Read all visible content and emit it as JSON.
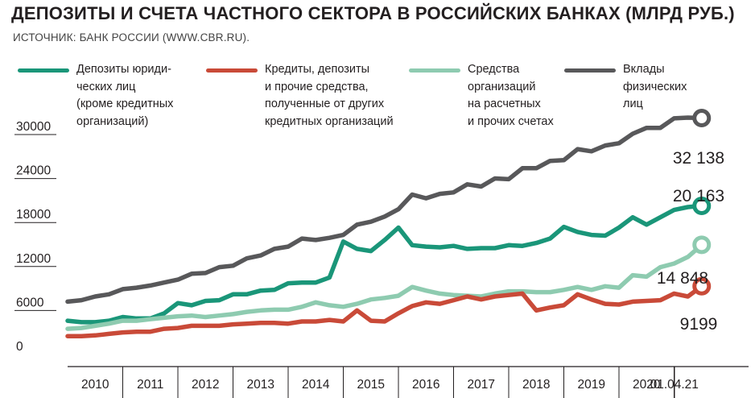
{
  "header": {
    "title": "ДЕПОЗИТЫ И СЧЕТА ЧАСТНОГО СЕКТОРА В РОССИЙСКИХ БАНКАХ (МЛРД РУБ.)",
    "source": "ИСТОЧНИК: БАНК РОССИИ (WWW.CBR.RU)."
  },
  "legend": [
    {
      "label": "Депозиты юриди-\nческих лиц\n(кроме кредитных\nорганизаций)",
      "color": "#1a9679"
    },
    {
      "label": "Кредиты, депозиты\nи прочие средства,\nполученные от других\nкредитных организаций",
      "color": "#c94a38"
    },
    {
      "label": "Средства\nорганизаций\nна расчетных\nи прочих счетах",
      "color": "#8ecbb0"
    },
    {
      "label": "Вклады\nфизических\nлиц",
      "color": "#58585a"
    }
  ],
  "chart_data": {
    "type": "line",
    "categories": [
      "2010",
      "2011",
      "2012",
      "2013",
      "2014",
      "2015",
      "2016",
      "2017",
      "2018",
      "2019",
      "2020",
      "01.04.21"
    ],
    "ylim": [
      0,
      33000
    ],
    "yticks": [
      0,
      6000,
      12000,
      18000,
      24000,
      30000
    ],
    "grid": false,
    "end_labels": [
      "32 138",
      "20 163",
      "14 848",
      "9199"
    ],
    "series": [
      {
        "key": "households",
        "color": "#58585a",
        "end_label": "32 138",
        "points": [
          [
            0.0,
            7100
          ],
          [
            0.25,
            7300
          ],
          [
            0.5,
            7800
          ],
          [
            0.75,
            8100
          ],
          [
            1.0,
            8800
          ],
          [
            1.25,
            9000
          ],
          [
            1.5,
            9300
          ],
          [
            1.75,
            9700
          ],
          [
            2.0,
            10100
          ],
          [
            2.25,
            10900
          ],
          [
            2.5,
            11000
          ],
          [
            2.75,
            11800
          ],
          [
            3.0,
            12000
          ],
          [
            3.25,
            13000
          ],
          [
            3.5,
            13400
          ],
          [
            3.75,
            14300
          ],
          [
            4.0,
            14600
          ],
          [
            4.25,
            15700
          ],
          [
            4.5,
            15500
          ],
          [
            4.75,
            15800
          ],
          [
            5.0,
            16200
          ],
          [
            5.25,
            17600
          ],
          [
            5.5,
            18000
          ],
          [
            5.75,
            18700
          ],
          [
            6.0,
            19700
          ],
          [
            6.25,
            21700
          ],
          [
            6.5,
            21200
          ],
          [
            6.75,
            21800
          ],
          [
            7.0,
            22000
          ],
          [
            7.25,
            23100
          ],
          [
            7.5,
            22800
          ],
          [
            7.75,
            23900
          ],
          [
            8.0,
            23800
          ],
          [
            8.25,
            25300
          ],
          [
            8.5,
            25300
          ],
          [
            8.75,
            26300
          ],
          [
            9.0,
            26400
          ],
          [
            9.25,
            27900
          ],
          [
            9.5,
            27600
          ],
          [
            9.75,
            28400
          ],
          [
            10.0,
            28700
          ],
          [
            10.25,
            30000
          ],
          [
            10.5,
            30800
          ],
          [
            10.75,
            30800
          ],
          [
            11.0,
            32100
          ],
          [
            11.25,
            32200
          ],
          [
            11.5,
            32138
          ]
        ]
      },
      {
        "key": "legal_entities",
        "color": "#1a9679",
        "end_label": "20 163",
        "points": [
          [
            0.0,
            4500
          ],
          [
            0.25,
            4300
          ],
          [
            0.5,
            4300
          ],
          [
            0.75,
            4500
          ],
          [
            1.0,
            5000
          ],
          [
            1.25,
            4800
          ],
          [
            1.5,
            4800
          ],
          [
            1.75,
            5500
          ],
          [
            2.0,
            6900
          ],
          [
            2.25,
            6600
          ],
          [
            2.5,
            7200
          ],
          [
            2.75,
            7300
          ],
          [
            3.0,
            8100
          ],
          [
            3.25,
            8100
          ],
          [
            3.5,
            8600
          ],
          [
            3.75,
            8700
          ],
          [
            4.0,
            9600
          ],
          [
            4.25,
            9700
          ],
          [
            4.5,
            9700
          ],
          [
            4.75,
            10400
          ],
          [
            5.0,
            15300
          ],
          [
            5.25,
            14300
          ],
          [
            5.5,
            14000
          ],
          [
            5.75,
            15500
          ],
          [
            6.0,
            17200
          ],
          [
            6.25,
            14800
          ],
          [
            6.5,
            14600
          ],
          [
            6.75,
            14500
          ],
          [
            7.0,
            14700
          ],
          [
            7.25,
            14300
          ],
          [
            7.5,
            14400
          ],
          [
            7.75,
            14400
          ],
          [
            8.0,
            14800
          ],
          [
            8.25,
            14700
          ],
          [
            8.5,
            15100
          ],
          [
            8.75,
            15700
          ],
          [
            9.0,
            17300
          ],
          [
            9.25,
            16600
          ],
          [
            9.5,
            16200
          ],
          [
            9.75,
            16100
          ],
          [
            10.0,
            17200
          ],
          [
            10.25,
            18600
          ],
          [
            10.5,
            17600
          ],
          [
            10.75,
            18600
          ],
          [
            11.0,
            19600
          ],
          [
            11.25,
            20000
          ],
          [
            11.5,
            20163
          ]
        ]
      },
      {
        "key": "accounts",
        "color": "#8ecbb0",
        "end_label": "14 848",
        "points": [
          [
            0.0,
            3400
          ],
          [
            0.25,
            3500
          ],
          [
            0.5,
            3800
          ],
          [
            0.75,
            4100
          ],
          [
            1.0,
            4500
          ],
          [
            1.25,
            4500
          ],
          [
            1.5,
            4700
          ],
          [
            1.75,
            4900
          ],
          [
            2.0,
            5100
          ],
          [
            2.25,
            5200
          ],
          [
            2.5,
            5000
          ],
          [
            2.75,
            5200
          ],
          [
            3.0,
            5400
          ],
          [
            3.25,
            5700
          ],
          [
            3.5,
            5900
          ],
          [
            3.75,
            6000
          ],
          [
            4.0,
            6000
          ],
          [
            4.25,
            6400
          ],
          [
            4.5,
            7000
          ],
          [
            4.75,
            6600
          ],
          [
            5.0,
            6400
          ],
          [
            5.25,
            6800
          ],
          [
            5.5,
            7400
          ],
          [
            5.75,
            7600
          ],
          [
            6.0,
            7900
          ],
          [
            6.25,
            9100
          ],
          [
            6.5,
            8600
          ],
          [
            6.75,
            8200
          ],
          [
            7.0,
            8000
          ],
          [
            7.25,
            7900
          ],
          [
            7.5,
            7800
          ],
          [
            7.75,
            8200
          ],
          [
            8.0,
            8500
          ],
          [
            8.25,
            8500
          ],
          [
            8.5,
            8400
          ],
          [
            8.75,
            8400
          ],
          [
            9.0,
            8700
          ],
          [
            9.25,
            9100
          ],
          [
            9.5,
            8700
          ],
          [
            9.75,
            9200
          ],
          [
            10.0,
            9000
          ],
          [
            10.25,
            10700
          ],
          [
            10.5,
            10500
          ],
          [
            10.75,
            11800
          ],
          [
            11.0,
            12300
          ],
          [
            11.25,
            13200
          ],
          [
            11.5,
            14848
          ]
        ]
      },
      {
        "key": "interbank",
        "color": "#c94a38",
        "end_label": "9199",
        "points": [
          [
            0.0,
            2400
          ],
          [
            0.25,
            2400
          ],
          [
            0.5,
            2500
          ],
          [
            0.75,
            2700
          ],
          [
            1.0,
            2900
          ],
          [
            1.25,
            3000
          ],
          [
            1.5,
            3000
          ],
          [
            1.75,
            3400
          ],
          [
            2.0,
            3500
          ],
          [
            2.25,
            3800
          ],
          [
            2.5,
            3800
          ],
          [
            2.75,
            3800
          ],
          [
            3.0,
            4000
          ],
          [
            3.25,
            4100
          ],
          [
            3.5,
            4200
          ],
          [
            3.75,
            4200
          ],
          [
            4.0,
            4100
          ],
          [
            4.25,
            4400
          ],
          [
            4.5,
            4400
          ],
          [
            4.75,
            4600
          ],
          [
            5.0,
            4400
          ],
          [
            5.25,
            5900
          ],
          [
            5.5,
            4500
          ],
          [
            5.75,
            4400
          ],
          [
            6.0,
            5500
          ],
          [
            6.25,
            6500
          ],
          [
            6.5,
            7000
          ],
          [
            6.75,
            6800
          ],
          [
            7.0,
            7300
          ],
          [
            7.25,
            7800
          ],
          [
            7.5,
            7400
          ],
          [
            7.75,
            7800
          ],
          [
            8.0,
            8000
          ],
          [
            8.25,
            8200
          ],
          [
            8.5,
            5900
          ],
          [
            8.75,
            6300
          ],
          [
            9.0,
            6600
          ],
          [
            9.25,
            8100
          ],
          [
            9.5,
            7400
          ],
          [
            9.75,
            6800
          ],
          [
            10.0,
            6700
          ],
          [
            10.25,
            7100
          ],
          [
            10.5,
            7200
          ],
          [
            10.75,
            7300
          ],
          [
            11.0,
            8200
          ],
          [
            11.25,
            7800
          ],
          [
            11.5,
            9199
          ]
        ]
      }
    ]
  }
}
